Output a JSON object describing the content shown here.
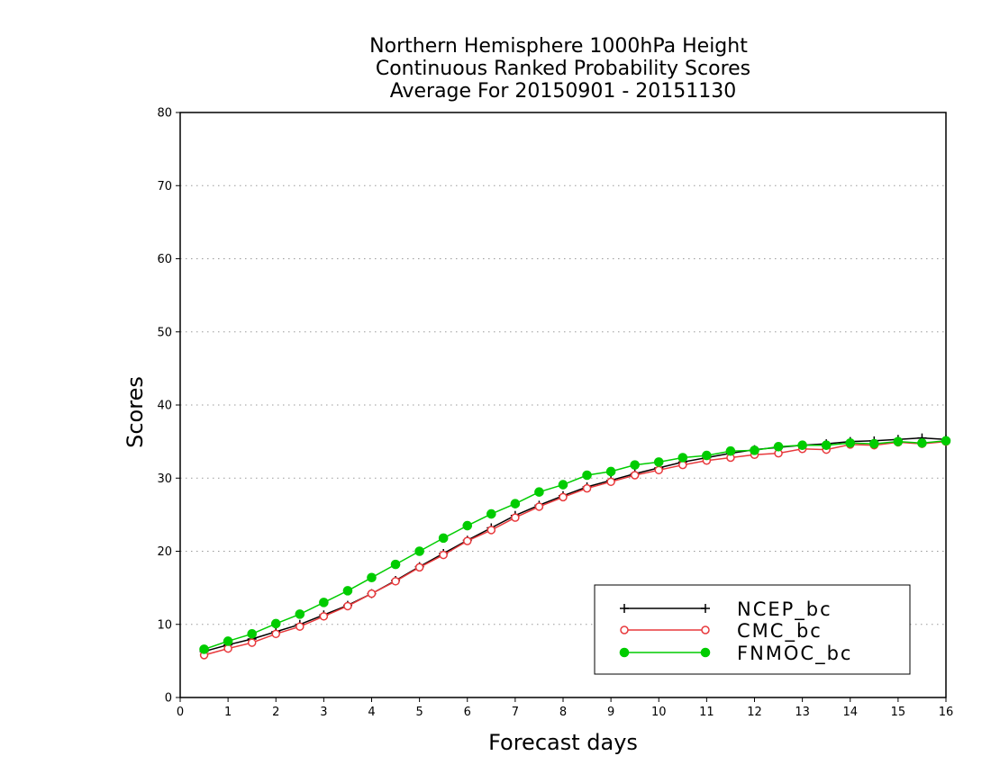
{
  "chart_data": {
    "type": "line",
    "title_lines": [
      "Northern Hemisphere 1000hPa Height",
      "Continuous Ranked Probability Scores",
      "Average For 20150901 - 20151130"
    ],
    "xlabel": "Forecast days",
    "ylabel": "Scores",
    "xlim": [
      0,
      16
    ],
    "ylim": [
      0,
      80
    ],
    "x_ticks": [
      "0",
      "1",
      "2",
      "3",
      "4",
      "5",
      "6",
      "7",
      "8",
      "9",
      "10",
      "11",
      "12",
      "13",
      "14",
      "15",
      "16"
    ],
    "y_ticks": [
      "0",
      "10",
      "20",
      "30",
      "40",
      "50",
      "60",
      "70",
      "80"
    ],
    "grid": "horizontal-dotted",
    "legend_position": "bottom-right",
    "x": [
      0.5,
      1,
      1.5,
      2,
      2.5,
      3,
      3.5,
      4,
      4.5,
      5,
      5.5,
      6,
      6.5,
      7,
      7.5,
      8,
      8.5,
      9,
      9.5,
      10,
      10.5,
      11,
      11.5,
      12,
      12.5,
      13,
      13.5,
      14,
      14.5,
      15,
      15.5,
      16
    ],
    "series": [
      {
        "name": "NCEP_bc",
        "color": "#000000",
        "marker": "plus",
        "values": [
          6.3,
          7.2,
          8.0,
          9.0,
          10.0,
          11.3,
          12.6,
          14.2,
          16.0,
          17.9,
          19.7,
          21.5,
          23.2,
          24.9,
          26.3,
          27.6,
          28.8,
          29.7,
          30.6,
          31.4,
          32.2,
          32.8,
          33.4,
          33.9,
          34.2,
          34.5,
          34.7,
          35.0,
          35.1,
          35.3,
          35.5,
          35.3
        ]
      },
      {
        "name": "CMC_bc",
        "color": "#e8393c",
        "marker": "open-circle",
        "values": [
          5.8,
          6.7,
          7.5,
          8.7,
          9.7,
          11.1,
          12.5,
          14.2,
          15.9,
          17.8,
          19.5,
          21.4,
          22.9,
          24.6,
          26.1,
          27.4,
          28.6,
          29.5,
          30.4,
          31.1,
          31.8,
          32.4,
          32.8,
          33.2,
          33.4,
          34.0,
          33.9,
          34.6,
          34.5,
          34.9,
          34.7,
          35.0
        ]
      },
      {
        "name": "FNMOC_bc",
        "color": "#00cc00",
        "marker": "filled-circle",
        "values": [
          6.6,
          7.7,
          8.7,
          10.1,
          11.4,
          13.0,
          14.6,
          16.4,
          18.2,
          20.0,
          21.8,
          23.5,
          25.1,
          26.5,
          28.1,
          29.1,
          30.4,
          30.9,
          31.8,
          32.2,
          32.8,
          33.1,
          33.7,
          33.8,
          34.3,
          34.5,
          34.5,
          34.8,
          34.7,
          35.0,
          34.8,
          35.1
        ]
      }
    ]
  }
}
